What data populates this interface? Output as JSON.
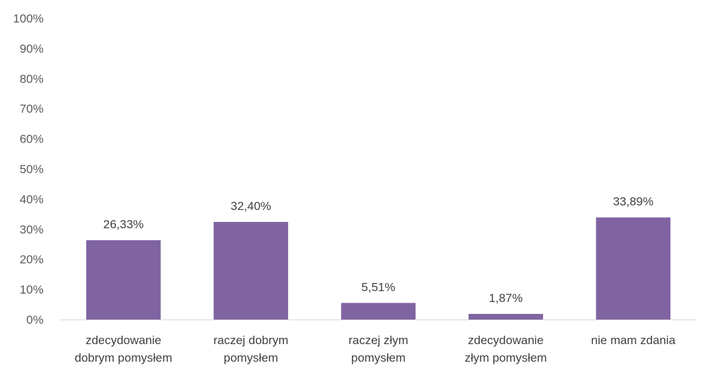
{
  "chart_data": {
    "type": "bar",
    "categories": [
      [
        "zdecydowanie",
        "dobrym pomysłem"
      ],
      [
        "raczej dobrym",
        "pomysłem"
      ],
      [
        "raczej złym",
        "pomysłem"
      ],
      [
        "zdecydowanie",
        "złym pomysłem"
      ],
      [
        "nie mam zdania"
      ]
    ],
    "values": [
      26.33,
      32.4,
      5.51,
      1.87,
      33.89
    ],
    "data_labels": [
      "26,33%",
      "32,40%",
      "5,51%",
      "1,87%",
      "33,89%"
    ],
    "yticks": [
      "0%",
      "10%",
      "20%",
      "30%",
      "40%",
      "50%",
      "60%",
      "70%",
      "80%",
      "90%",
      "100%"
    ],
    "ylim": [
      0,
      100
    ],
    "title": "",
    "xlabel": "",
    "ylabel": "",
    "grid": false,
    "legend": "none",
    "bar_color": "#8064A2",
    "axis_color": "#D9D9D9"
  }
}
